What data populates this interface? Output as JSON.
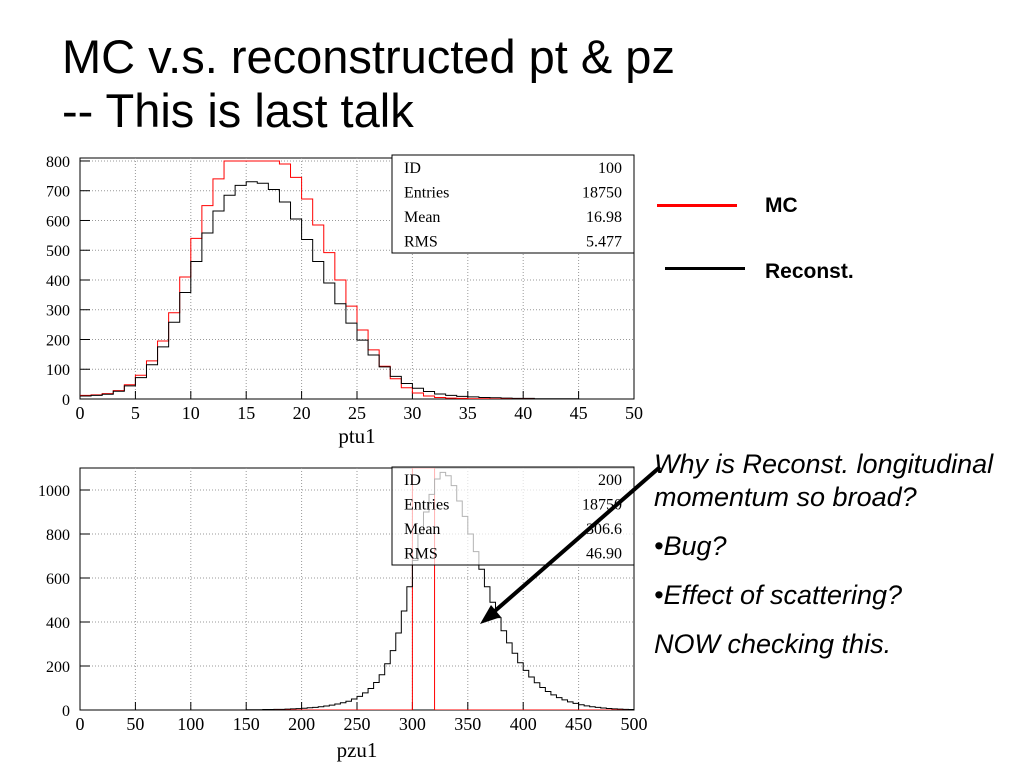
{
  "slide": {
    "title_line1": "MC v.s. reconstructed pt & pz",
    "title_line2": "-- This is last talk"
  },
  "legend": [
    {
      "label": "MC",
      "color": "#ff0000"
    },
    {
      "label": "Reconst.",
      "color": "#000000"
    }
  ],
  "notes": {
    "question": "Why is  Reconst. longitudinal momentum so broad?",
    "bullet1": "•Bug?",
    "bullet2": "•Effect of scattering?",
    "conclusion": "NOW checking this."
  },
  "chart_data": [
    {
      "type": "histogram",
      "xlabel": "ptu1",
      "xlim": [
        0,
        50
      ],
      "ylim": [
        0,
        810
      ],
      "xticks": [
        0,
        5,
        10,
        15,
        20,
        25,
        30,
        35,
        40,
        45,
        50
      ],
      "yticks": [
        0,
        100,
        200,
        300,
        400,
        500,
        600,
        700,
        800
      ],
      "grid": true,
      "stats": [
        {
          "label": "ID",
          "value": "100"
        },
        {
          "label": "Entries",
          "value": "18750"
        },
        {
          "label": "Mean",
          "value": "16.98"
        },
        {
          "label": "RMS",
          "value": "5.477"
        }
      ],
      "series": [
        {
          "name": "MC",
          "color": "#ff0000",
          "bin_low": 0,
          "bin_width": 1,
          "values": [
            12,
            14,
            18,
            28,
            48,
            80,
            128,
            195,
            290,
            410,
            540,
            650,
            740,
            800,
            800,
            800,
            800,
            800,
            790,
            745,
            672,
            585,
            492,
            400,
            312,
            232,
            165,
            110,
            68,
            38,
            20,
            10,
            5,
            3,
            2,
            1,
            1,
            0,
            0,
            0,
            0,
            0,
            0,
            0,
            0,
            0,
            0,
            0,
            0,
            0
          ]
        },
        {
          "name": "Reconst.",
          "color": "#000000",
          "bin_low": 0,
          "bin_width": 1,
          "values": [
            10,
            12,
            16,
            26,
            44,
            72,
            115,
            175,
            258,
            358,
            462,
            558,
            632,
            685,
            718,
            730,
            725,
            704,
            662,
            605,
            536,
            462,
            390,
            320,
            255,
            198,
            148,
            108,
            76,
            52,
            36,
            25,
            17,
            12,
            9,
            7,
            5,
            4,
            3,
            2,
            2,
            1,
            1,
            1,
            1,
            0,
            0,
            0,
            0,
            0
          ]
        }
      ]
    },
    {
      "type": "histogram",
      "xlabel": "pzu1",
      "xlim": [
        0,
        500
      ],
      "ylim": [
        0,
        1100
      ],
      "xticks": [
        0,
        50,
        100,
        150,
        200,
        250,
        300,
        350,
        400,
        450,
        500
      ],
      "yticks": [
        0,
        200,
        400,
        600,
        800,
        1000
      ],
      "grid": true,
      "stats": [
        {
          "label": "ID",
          "value": "200"
        },
        {
          "label": "Entries",
          "value": "18750"
        },
        {
          "label": "Mean",
          "value": "306.6"
        },
        {
          "label": "RMS",
          "value": "46.90"
        }
      ],
      "series": [
        {
          "name": "MC",
          "color": "#ff0000",
          "bin_low": 0,
          "bin_width": 5,
          "values": [
            0,
            0,
            0,
            0,
            0,
            0,
            0,
            0,
            0,
            0,
            0,
            0,
            0,
            0,
            0,
            0,
            0,
            0,
            0,
            0,
            0,
            0,
            0,
            0,
            0,
            0,
            0,
            0,
            0,
            0,
            0,
            0,
            0,
            0,
            0,
            0,
            0,
            0,
            0,
            0,
            0,
            0,
            0,
            0,
            0,
            0,
            0,
            0,
            0,
            0,
            0,
            0,
            0,
            0,
            0,
            0,
            0,
            0,
            0,
            0,
            1100,
            1100,
            1100,
            1100,
            0,
            0,
            0,
            0,
            0,
            0,
            0,
            0,
            0,
            0,
            0,
            0,
            0,
            0,
            0,
            0,
            0,
            0,
            0,
            0,
            0,
            0,
            0,
            0,
            0,
            0,
            0,
            0,
            0,
            0,
            0,
            0,
            0,
            0,
            0,
            0
          ]
        },
        {
          "name": "Reconst.",
          "color": "#000000",
          "bin_low": 0,
          "bin_width": 5,
          "values": [
            0,
            0,
            0,
            0,
            0,
            0,
            0,
            0,
            0,
            0,
            0,
            0,
            0,
            0,
            0,
            0,
            0,
            0,
            0,
            0,
            0,
            0,
            0,
            0,
            0,
            0,
            0,
            0,
            0,
            0,
            1,
            1,
            1,
            2,
            2,
            3,
            3,
            4,
            5,
            6,
            8,
            10,
            12,
            15,
            18,
            22,
            27,
            33,
            40,
            50,
            62,
            78,
            98,
            125,
            160,
            210,
            270,
            350,
            450,
            560,
            680,
            800,
            900,
            980,
            1050,
            1080,
            1065,
            1020,
            950,
            880,
            800,
            720,
            640,
            560,
            490,
            420,
            360,
            305,
            258,
            215,
            180,
            150,
            124,
            102,
            84,
            69,
            56,
            46,
            37,
            30,
            24,
            19,
            15,
            12,
            9,
            7,
            5,
            4,
            3,
            2
          ]
        }
      ]
    }
  ]
}
